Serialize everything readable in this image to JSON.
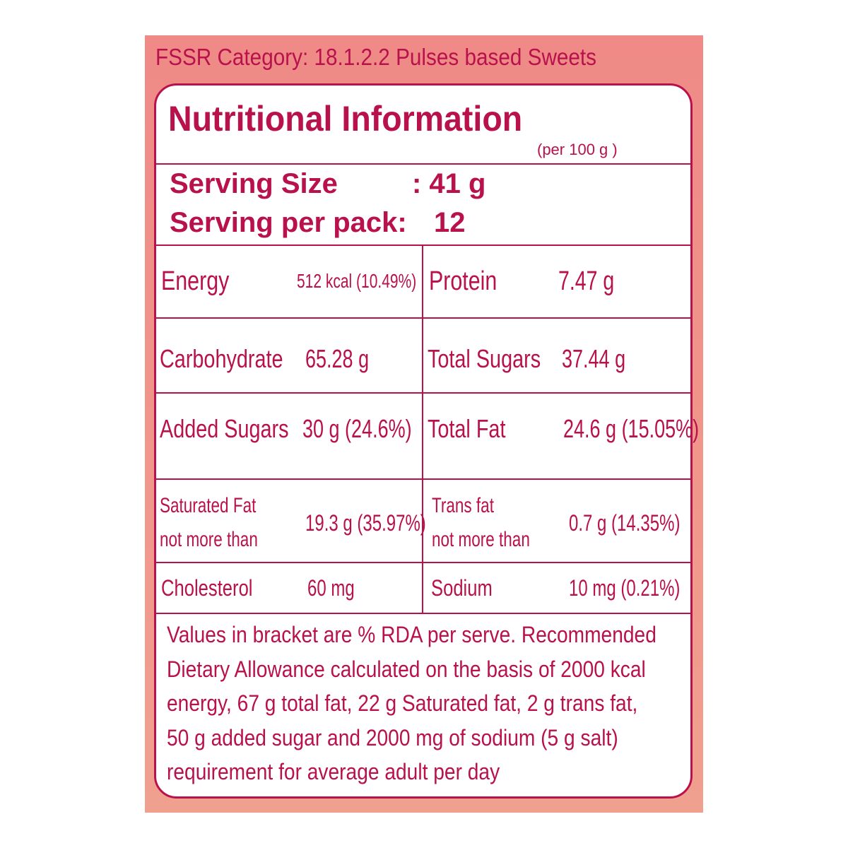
{
  "header": {
    "category": "FSSR Category: 18.1.2.2 Pulses based Sweets"
  },
  "title": "Nutritional Information",
  "basis": "(per 100 g  )",
  "serving": [
    {
      "label": "Serving Size",
      "value": ":  41 g"
    },
    {
      "label": "Serving per pack:",
      "value": "12"
    }
  ],
  "table": {
    "rows": [
      [
        {
          "label": "Energy",
          "value": "512 kcal (10.49%)"
        },
        {
          "label": "Protein",
          "value": "7.47 g"
        }
      ],
      [
        {
          "label": "Carbohydrate",
          "value": "65.28 g"
        },
        {
          "label": "Total Sugars",
          "value": "37.44 g"
        }
      ],
      [
        {
          "label": "Added Sugars",
          "value": "30 g (24.6%)"
        },
        {
          "label": "Total Fat",
          "value": "24.6 g (15.05%)"
        }
      ],
      [
        {
          "label": "Saturated Fat",
          "label2": "not more than",
          "value": "19.3 g (35.97%)"
        },
        {
          "label": "Trans fat",
          "label2": "not more than",
          "value": "0.7 g (14.35%)"
        }
      ],
      [
        {
          "label": "Cholesterol",
          "value": "60 mg"
        },
        {
          "label": "Sodium",
          "value": "10 mg (0.21%)"
        }
      ]
    ]
  },
  "footer": [
    "Values in bracket are % RDA per serve. Recommended",
    "Dietary Allowance calculated on the basis of 2000 kcal",
    "energy, 67 g total fat, 22 g Saturated fat, 2 g trans fat,",
    "50 g added sugar and 2000 mg of sodium (5 g salt)",
    "requirement for average adult per day"
  ]
}
